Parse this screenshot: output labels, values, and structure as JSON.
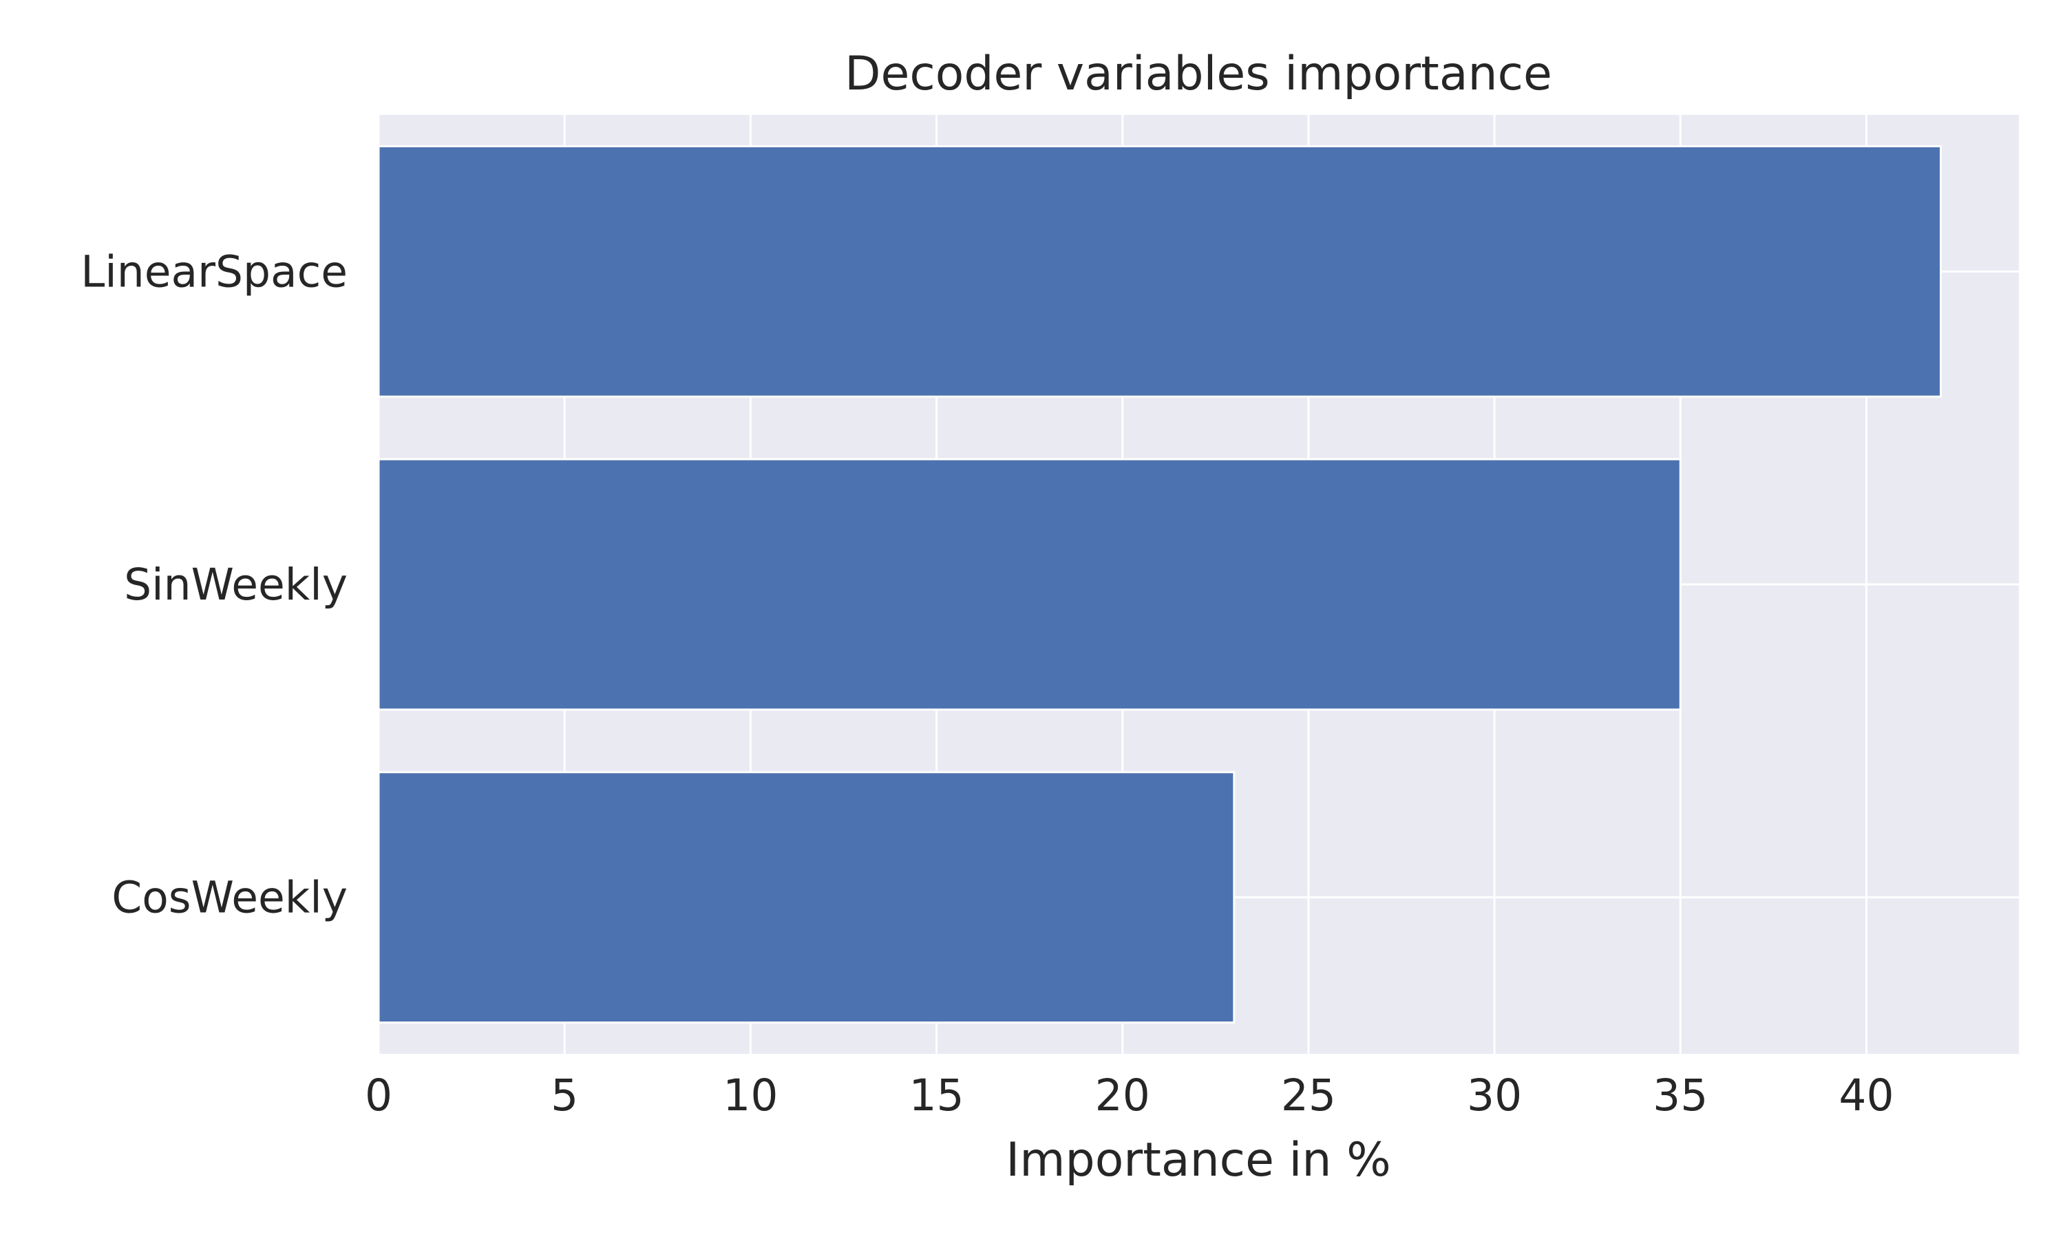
{
  "chart_data": {
    "type": "bar",
    "orientation": "horizontal",
    "title": "Decoder variables importance",
    "xlabel": "Importance in %",
    "ylabel": "",
    "categories": [
      "LinearSpace",
      "SinWeekly",
      "CosWeekly"
    ],
    "values": [
      42,
      35,
      23
    ],
    "xlim": [
      0,
      44.1
    ],
    "xticks": [
      0,
      5,
      10,
      15,
      20,
      25,
      30,
      35,
      40
    ],
    "grid": true,
    "legend": "none",
    "colors": {
      "bar": "#4c72b0",
      "plot_background": "#eaeaf2",
      "grid": "#ffffff",
      "text": "#262626"
    }
  }
}
